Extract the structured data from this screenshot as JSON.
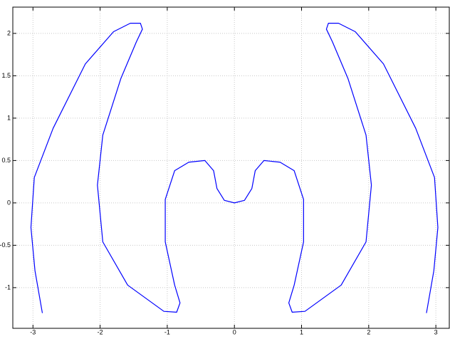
{
  "chart_data": {
    "type": "line",
    "x": [
      -2.86,
      -2.97,
      -3.03,
      -2.98,
      -2.7,
      -2.22,
      -1.8,
      -1.55,
      -1.4,
      -1.37,
      -1.46,
      -1.69,
      -1.96,
      -2.04,
      -1.96,
      -1.59,
      -1.05,
      -0.86,
      -0.81,
      -0.89,
      -1.03,
      -1.03,
      -0.89,
      -0.68,
      -0.44,
      -0.31,
      -0.26,
      -0.15,
      0,
      0.15,
      0.26,
      0.31,
      0.44,
      0.68,
      0.89,
      1.03,
      1.03,
      0.89,
      0.81,
      0.86,
      1.05,
      1.59,
      1.96,
      2.04,
      1.96,
      1.69,
      1.46,
      1.37,
      1.4,
      1.55,
      1.8,
      2.22,
      2.7,
      2.98,
      3.03,
      2.97,
      2.86
    ],
    "series": [
      {
        "color": "#0000ff",
        "values": [
          -1.3,
          -0.8,
          -0.29,
          0.3,
          0.88,
          1.64,
          2.02,
          2.12,
          2.12,
          2.05,
          1.9,
          1.47,
          0.8,
          0.21,
          -0.46,
          -0.97,
          -1.28,
          -1.29,
          -1.18,
          -0.97,
          -0.46,
          0.04,
          0.38,
          0.48,
          0.5,
          0.38,
          0.17,
          0.03,
          0,
          0.03,
          0.17,
          0.38,
          0.5,
          0.48,
          0.38,
          0.04,
          -0.46,
          -0.97,
          -1.18,
          -1.29,
          -1.28,
          -0.97,
          -0.46,
          0.21,
          0.8,
          1.47,
          1.9,
          2.05,
          2.12,
          2.12,
          2.02,
          1.64,
          0.88,
          0.3,
          -0.29,
          -0.8,
          -1.3
        ]
      }
    ],
    "xlim": [
      -3.3,
      3.2
    ],
    "xticks": [
      -3,
      -2,
      -1,
      0,
      1,
      2,
      3
    ],
    "ylim": [
      -1.48,
      2.31
    ],
    "yticks": [
      -1,
      -0.5,
      0,
      0.5,
      1,
      1.5,
      2
    ],
    "grid": true
  }
}
